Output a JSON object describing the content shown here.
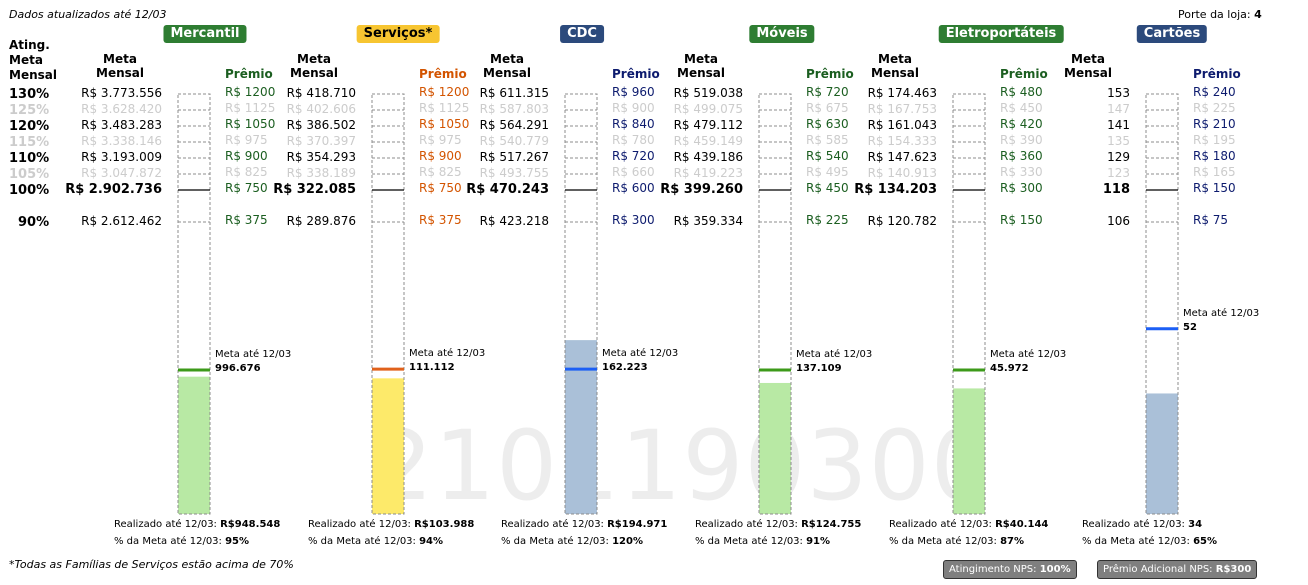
{
  "header": {
    "updated": "Dados atualizados até 12/03",
    "porte_label": "Porte da loja:",
    "porte_value": "4"
  },
  "levels_header": "Ating.\nMeta\nMensal",
  "levels": [
    "130%",
    "125%",
    "120%",
    "115%",
    "110%",
    "105%",
    "100%",
    "90%"
  ],
  "meta_header": "Meta\nMensal",
  "premio_header": "Prêmio",
  "watermark": "2101190300",
  "footnote": "*Todas as Famílias de Serviços estão acima de 70%",
  "badges": {
    "nps_label": "Atingimento NPS:",
    "nps_value": "100%",
    "premio_label": "Prêmio Adicional NPS:",
    "premio_value": "R$300"
  },
  "chart_data": {
    "type": "bar",
    "categories": [
      "Mercantil",
      "Serviços*",
      "CDC",
      "Móveis",
      "Eletroportáteis",
      "Cartões"
    ],
    "levels": [
      "130%",
      "125%",
      "120%",
      "115%",
      "110%",
      "105%",
      "100%",
      "90%"
    ],
    "series": [
      {
        "label_color": "#2e7d32",
        "prem_color": "#1b5e20",
        "fill": "#b8e9a4",
        "marker": "#3c9a1a",
        "meta": [
          "R$ 3.773.556",
          "R$ 3.628.420",
          "R$ 3.483.283",
          "R$ 3.338.146",
          "R$ 3.193.009",
          "R$ 3.047.872",
          "R$ 2.902.736",
          "R$ 2.612.462"
        ],
        "premio": [
          "R$ 1200",
          "R$ 1125",
          "R$ 1050",
          "R$ 975",
          "R$ 900",
          "R$ 825",
          "R$ 750",
          "R$ 375"
        ],
        "meta_ate_label": "Meta até 12/03",
        "meta_ate": "996.676",
        "realizado_label": "Realizado até 12/03:",
        "realizado": "R$948.548",
        "pct_label": "% da Meta até 12/03:",
        "pct": "95%",
        "marker_frac": 0.343,
        "fill_frac": 0.327
      },
      {
        "label_color": "#f7c531",
        "label_text_color": "#000000",
        "prem_color": "#d35400",
        "fill": "#fdea6a",
        "marker": "#e0611b",
        "meta": [
          "R$ 418.710",
          "R$ 402.606",
          "R$ 386.502",
          "R$ 370.397",
          "R$ 354.293",
          "R$ 338.189",
          "R$ 322.085",
          "R$ 289.876"
        ],
        "premio": [
          "R$ 1200",
          "R$ 1125",
          "R$ 1050",
          "R$ 975",
          "R$ 900",
          "R$ 825",
          "R$ 750",
          "R$ 375"
        ],
        "meta_ate_label": "Meta até 12/03",
        "meta_ate": "111.112",
        "realizado_label": "Realizado até 12/03:",
        "realizado": "R$103.988",
        "pct_label": "% da Meta até 12/03:",
        "pct": "94%",
        "marker_frac": 0.345,
        "fill_frac": 0.323
      },
      {
        "label_color": "#2c4a7c",
        "prem_color": "#0d1b6e",
        "fill": "#aac0d8",
        "marker": "#1c5ff5",
        "meta": [
          "R$ 611.315",
          "R$ 587.803",
          "R$ 564.291",
          "R$ 540.779",
          "R$ 517.267",
          "R$ 493.755",
          "R$ 470.243",
          "R$ 423.218"
        ],
        "premio": [
          "R$ 960",
          "R$ 900",
          "R$ 840",
          "R$ 780",
          "R$ 720",
          "R$ 660",
          "R$ 600",
          "R$ 300"
        ],
        "meta_ate_label": "Meta até 12/03",
        "meta_ate": "162.223",
        "realizado_label": "Realizado até 12/03:",
        "realizado": "R$194.971",
        "pct_label": "% da Meta até 12/03:",
        "pct": "120%",
        "marker_frac": 0.345,
        "fill_frac": 0.414
      },
      {
        "label_color": "#2e7d32",
        "prem_color": "#1b5e20",
        "fill": "#b8e9a4",
        "marker": "#3c9a1a",
        "meta": [
          "R$ 519.038",
          "R$ 499.075",
          "R$ 479.112",
          "R$ 459.149",
          "R$ 439.186",
          "R$ 419.223",
          "R$ 399.260",
          "R$ 359.334"
        ],
        "premio": [
          "R$ 720",
          "R$ 675",
          "R$ 630",
          "R$ 585",
          "R$ 540",
          "R$ 495",
          "R$ 450",
          "R$ 225"
        ],
        "meta_ate_label": "Meta até 12/03",
        "meta_ate": "137.109",
        "realizado_label": "Realizado até 12/03:",
        "realizado": "R$124.755",
        "pct_label": "% da Meta até 12/03:",
        "pct": "91%",
        "marker_frac": 0.343,
        "fill_frac": 0.312
      },
      {
        "label_color": "#2e7d32",
        "prem_color": "#1b5e20",
        "fill": "#b8e9a4",
        "marker": "#3c9a1a",
        "meta": [
          "R$ 174.463",
          "R$ 167.753",
          "R$ 161.043",
          "R$ 154.333",
          "R$ 147.623",
          "R$ 140.913",
          "R$ 134.203",
          "R$ 120.782"
        ],
        "premio": [
          "R$ 480",
          "R$ 450",
          "R$ 420",
          "R$ 390",
          "R$ 360",
          "R$ 330",
          "R$ 300",
          "R$ 150"
        ],
        "meta_ate_label": "Meta até 12/03",
        "meta_ate": "45.972",
        "realizado_label": "Realizado até 12/03:",
        "realizado": "R$40.144",
        "pct_label": "% da Meta até 12/03:",
        "pct": "87%",
        "marker_frac": 0.343,
        "fill_frac": 0.299
      },
      {
        "label_color": "#2c4a7c",
        "prem_color": "#0d1b6e",
        "fill": "#aac0d8",
        "marker": "#1c5ff5",
        "meta": [
          "153",
          "147",
          "141",
          "135",
          "129",
          "123",
          "118",
          "106"
        ],
        "premio": [
          "R$ 240",
          "R$ 225",
          "R$ 210",
          "R$ 195",
          "R$ 180",
          "R$ 165",
          "R$ 150",
          "R$ 75"
        ],
        "meta_ate_label": "Meta até 12/03",
        "meta_ate": "52",
        "realizado_label": "Realizado até 12/03:",
        "realizado": "34",
        "pct_label": "% da Meta até 12/03:",
        "pct": "65%",
        "marker_frac": 0.441,
        "fill_frac": 0.287
      }
    ]
  }
}
